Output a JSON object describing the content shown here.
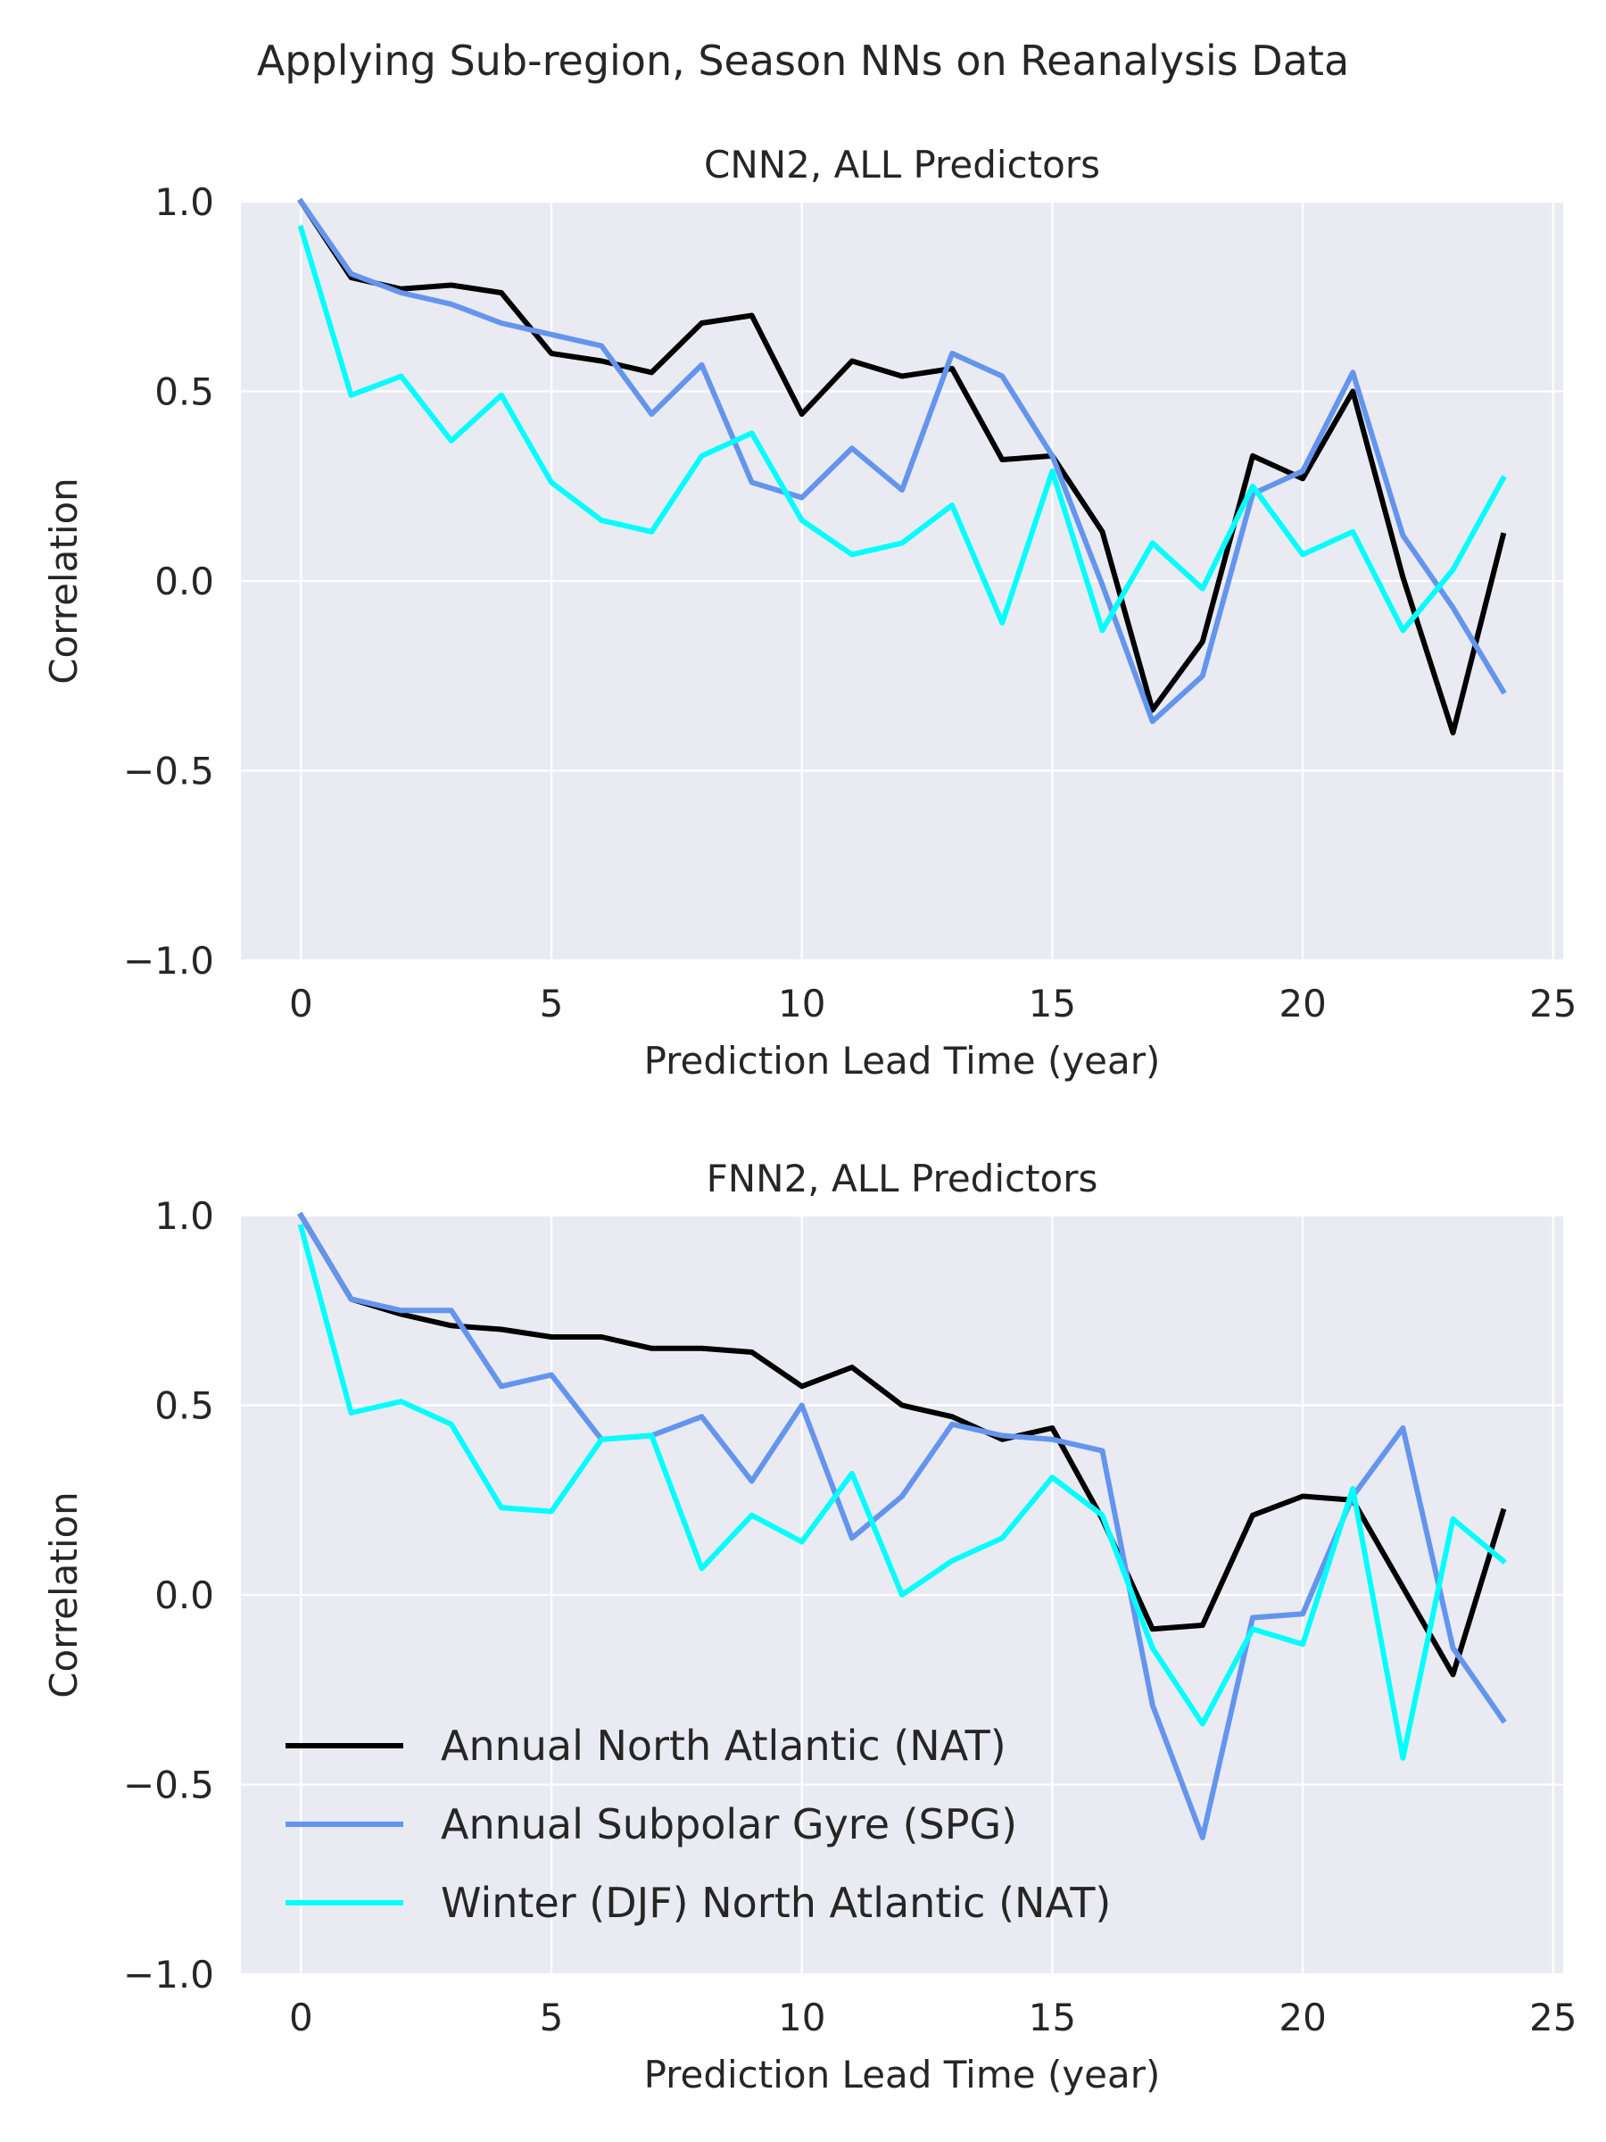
{
  "figure_title": "Applying Sub-region, Season NNs on Reanalysis Data",
  "colors": {
    "plot_background": "#EAEAF2",
    "grid": "#FFFFFF",
    "text": "#262626",
    "series": {
      "nat_annual": "#000000",
      "spg_annual": "#6495ED",
      "nat_winter": "#00FFFF"
    }
  },
  "chart_data": [
    {
      "type": "line",
      "title": "CNN2, ALL Predictors",
      "xlabel": "Prediction Lead Time (year)",
      "ylabel": "Correlation",
      "xlim": [
        -1.2,
        25.2
      ],
      "ylim": [
        -1.0,
        1.0
      ],
      "xticks": [
        0,
        5,
        10,
        15,
        20,
        25
      ],
      "yticks": [
        -1.0,
        -0.5,
        0.0,
        0.5,
        1.0
      ],
      "xtick_labels": [
        "0",
        "5",
        "10",
        "15",
        "20",
        "25"
      ],
      "ytick_labels": [
        "−1.0",
        "−0.5",
        "0.0",
        "0.5",
        "1.0"
      ],
      "grid": true,
      "x": [
        0,
        1,
        2,
        3,
        4,
        5,
        6,
        7,
        8,
        9,
        10,
        11,
        12,
        13,
        14,
        15,
        16,
        17,
        18,
        19,
        20,
        21,
        22,
        23,
        24
      ],
      "series": [
        {
          "name": "Annual North Atlantic (NAT)",
          "color": "#000000",
          "values": [
            1.0,
            0.8,
            0.77,
            0.78,
            0.76,
            0.6,
            0.58,
            0.55,
            0.68,
            0.7,
            0.44,
            0.58,
            0.54,
            0.56,
            0.32,
            0.33,
            0.13,
            -0.34,
            -0.16,
            0.33,
            0.27,
            0.5,
            0.01,
            -0.4,
            0.12
          ]
        },
        {
          "name": "Annual Subpolar Gyre (SPG)",
          "color": "#6495ED",
          "values": [
            1.0,
            0.81,
            0.76,
            0.73,
            0.68,
            0.65,
            0.62,
            0.44,
            0.57,
            0.26,
            0.22,
            0.35,
            0.24,
            0.6,
            0.54,
            0.33,
            -0.01,
            -0.37,
            -0.25,
            0.23,
            0.29,
            0.55,
            0.12,
            -0.07,
            -0.29
          ]
        },
        {
          "name": "Winter (DJF) North Atlantic (NAT)",
          "color": "#00FFFF",
          "values": [
            0.93,
            0.49,
            0.54,
            0.37,
            0.49,
            0.26,
            0.16,
            0.13,
            0.33,
            0.39,
            0.16,
            0.07,
            0.1,
            0.2,
            -0.11,
            0.29,
            -0.13,
            0.1,
            -0.02,
            0.25,
            0.07,
            0.13,
            -0.13,
            0.03,
            0.27
          ]
        }
      ]
    },
    {
      "type": "line",
      "title": "FNN2, ALL Predictors",
      "xlabel": "Prediction Lead Time (year)",
      "ylabel": "Correlation",
      "xlim": [
        -1.2,
        25.2
      ],
      "ylim": [
        -1.0,
        1.0
      ],
      "xticks": [
        0,
        5,
        10,
        15,
        20,
        25
      ],
      "yticks": [
        -1.0,
        -0.5,
        0.0,
        0.5,
        1.0
      ],
      "xtick_labels": [
        "0",
        "5",
        "10",
        "15",
        "20",
        "25"
      ],
      "ytick_labels": [
        "−1.0",
        "−0.5",
        "0.0",
        "0.5",
        "1.0"
      ],
      "grid": true,
      "legend_position": "lower-left",
      "x": [
        0,
        1,
        2,
        3,
        4,
        5,
        6,
        7,
        8,
        9,
        10,
        11,
        12,
        13,
        14,
        15,
        16,
        17,
        18,
        19,
        20,
        21,
        22,
        23,
        24
      ],
      "series": [
        {
          "name": "Annual North Atlantic (NAT)",
          "color": "#000000",
          "values": [
            1.0,
            0.78,
            0.74,
            0.71,
            0.7,
            0.68,
            0.68,
            0.65,
            0.65,
            0.64,
            0.55,
            0.6,
            0.5,
            0.47,
            0.41,
            0.44,
            0.2,
            -0.09,
            -0.08,
            0.21,
            0.26,
            0.25,
            0.02,
            -0.21,
            0.22
          ]
        },
        {
          "name": "Annual Subpolar Gyre (SPG)",
          "color": "#6495ED",
          "values": [
            1.0,
            0.78,
            0.75,
            0.75,
            0.55,
            0.58,
            0.41,
            0.42,
            0.47,
            0.3,
            0.5,
            0.15,
            0.26,
            0.45,
            0.42,
            0.41,
            0.38,
            -0.29,
            -0.64,
            -0.06,
            -0.05,
            0.26,
            0.44,
            -0.14,
            -0.33
          ]
        },
        {
          "name": "Winter (DJF) North Atlantic (NAT)",
          "color": "#00FFFF",
          "values": [
            0.97,
            0.48,
            0.51,
            0.45,
            0.23,
            0.22,
            0.41,
            0.42,
            0.07,
            0.21,
            0.14,
            0.32,
            0.0,
            0.09,
            0.15,
            0.31,
            0.21,
            -0.14,
            -0.34,
            -0.09,
            -0.13,
            0.28,
            -0.43,
            0.2,
            0.09
          ]
        }
      ]
    }
  ]
}
